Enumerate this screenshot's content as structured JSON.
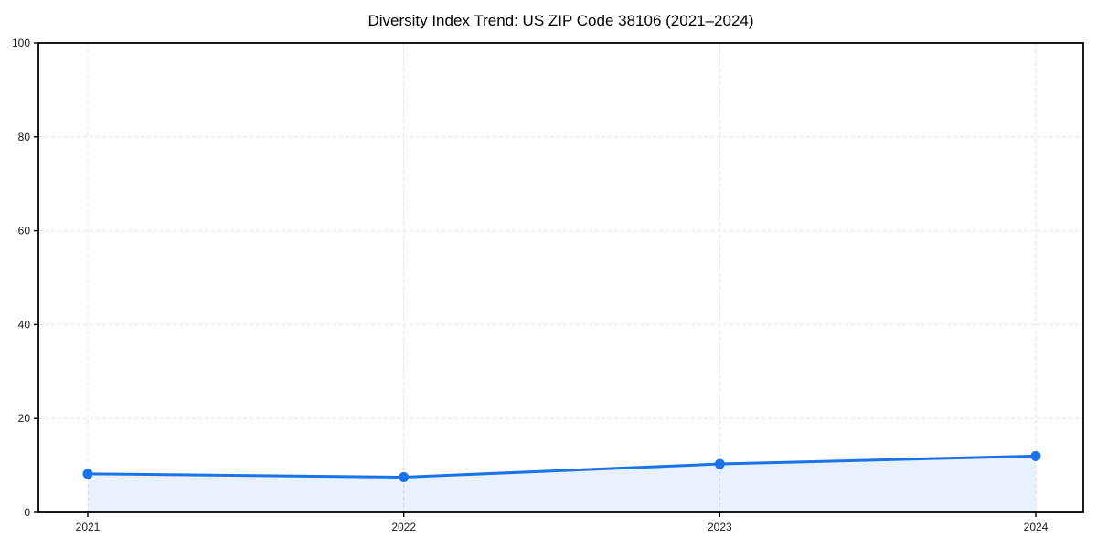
{
  "page": {
    "background": "#ffffff"
  },
  "chart_data": {
    "type": "line",
    "title": "Diversity Index Trend: US ZIP Code 38106 (2021–2024)",
    "categories": [
      "2021",
      "2022",
      "2023",
      "2024"
    ],
    "series": [
      {
        "name": "Diversity Index",
        "values": [
          8.2,
          7.5,
          10.3,
          12.0
        ]
      }
    ],
    "area_fill": true,
    "markers": true,
    "xlabel": "",
    "ylabel": "",
    "ylim": [
      0,
      100
    ],
    "yticks": [
      0,
      20,
      40,
      60,
      80,
      100
    ],
    "ytick_labels": [
      "0",
      "20",
      "40",
      "60",
      "80",
      "100"
    ],
    "grid": true,
    "grid_style": "dashed",
    "legend": false,
    "colors": {
      "line": "#1a73e8",
      "fill": "#1a73e8",
      "fill_opacity": 0.1,
      "grid": "#e2e2e2",
      "axis": "#000000",
      "text": "#1a1a1a",
      "background": "#ffffff"
    }
  }
}
